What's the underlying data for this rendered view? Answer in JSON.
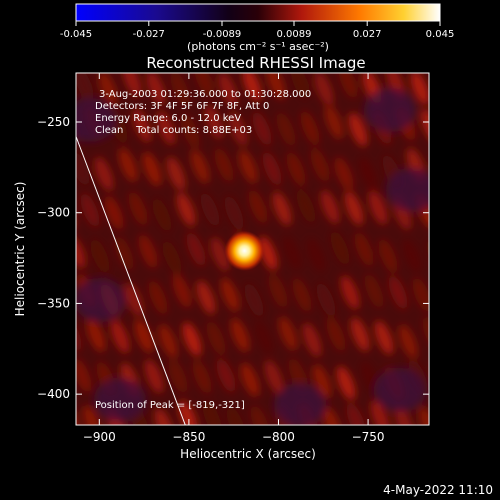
{
  "colorbar": {
    "min": -0.045,
    "max": 0.045,
    "ticks": [
      "-0.045",
      "-0.027",
      "-0.0089",
      "0.0089",
      "0.027",
      "0.045"
    ],
    "tick_values": [
      -0.045,
      -0.027,
      -0.0089,
      0.0089,
      0.027,
      0.045
    ],
    "unit_label": "(photons cm⁻² s⁻¹ asec⁻²)",
    "colormap": [
      "#0000ff",
      "#000000",
      "#b0180c",
      "#ff7a00",
      "#ffe040",
      "#ffffff"
    ]
  },
  "chart_data": {
    "type": "heatmap",
    "title": "Reconstructed RHESSI Image",
    "xlabel": "Heliocentric X (arcsec)",
    "ylabel": "Heliocentric Y (arcsec)",
    "xlim": [
      -913,
      -716
    ],
    "ylim": [
      -417,
      -223
    ],
    "xticks": [
      -900,
      -850,
      -800,
      -750
    ],
    "yticks": [
      -250,
      -300,
      -350,
      -400
    ],
    "annotations": [
      "3-Aug-2003 01:29:36.000 to 01:30:28.000",
      "Detectors: 3F 4F 5F 6F 7F 8F, Att 0",
      "Energy Range: 6.0 - 12.0 keV",
      "Clean    Total counts: 8.88E+03"
    ],
    "peak_label": "Position of Peak = [-819,-321]",
    "peak": {
      "x": -819,
      "y": -321
    },
    "limb_points": [
      [
        -913,
        -258
      ],
      [
        -852,
        -417
      ]
    ]
  },
  "footer": {
    "timestamp": "4-May-2022 11:10"
  }
}
